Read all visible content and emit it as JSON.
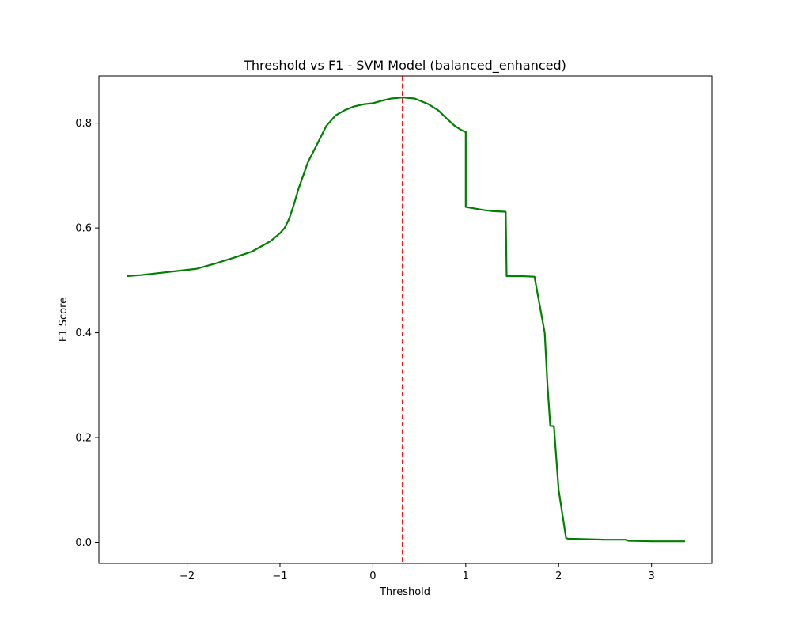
{
  "chart_data": {
    "type": "line",
    "title": "Threshold vs F1 - SVM Model (balanced_enhanced)",
    "xlabel": "Threshold",
    "ylabel": "F1 Score",
    "xlim": [
      -2.95,
      3.65
    ],
    "ylim": [
      -0.04,
      0.89
    ],
    "xticks": [
      -2,
      -1,
      0,
      1,
      2,
      3
    ],
    "xtick_labels": [
      "−2",
      "−1",
      "0",
      "1",
      "2",
      "3"
    ],
    "yticks": [
      0.0,
      0.2,
      0.4,
      0.6,
      0.8
    ],
    "ytick_labels": [
      "0.0",
      "0.2",
      "0.4",
      "0.6",
      "0.8"
    ],
    "grid": false,
    "series": [
      {
        "color": "#008000",
        "x": [
          -2.65,
          -2.5,
          -2.3,
          -2.1,
          -1.9,
          -1.7,
          -1.5,
          -1.3,
          -1.2,
          -1.1,
          -1.0,
          -0.95,
          -0.9,
          -0.85,
          -0.8,
          -0.75,
          -0.7,
          -0.6,
          -0.5,
          -0.4,
          -0.3,
          -0.2,
          -0.1,
          0.0,
          0.1,
          0.2,
          0.32,
          0.45,
          0.6,
          0.7,
          0.8,
          0.88,
          0.95,
          1.0,
          1.0,
          1.1,
          1.2,
          1.3,
          1.43,
          1.44,
          1.5,
          1.6,
          1.74,
          1.85,
          1.88,
          1.91,
          1.94,
          1.95,
          2.0,
          2.08,
          2.1,
          2.3,
          2.5,
          2.73,
          2.75,
          3.0,
          3.36
        ],
        "y": [
          0.508,
          0.51,
          0.514,
          0.518,
          0.522,
          0.532,
          0.543,
          0.555,
          0.565,
          0.575,
          0.59,
          0.6,
          0.618,
          0.645,
          0.675,
          0.7,
          0.725,
          0.76,
          0.795,
          0.815,
          0.825,
          0.832,
          0.836,
          0.838,
          0.843,
          0.847,
          0.849,
          0.847,
          0.836,
          0.825,
          0.808,
          0.795,
          0.787,
          0.783,
          0.64,
          0.637,
          0.634,
          0.632,
          0.631,
          0.508,
          0.508,
          0.508,
          0.507,
          0.4,
          0.3,
          0.222,
          0.222,
          0.22,
          0.1,
          0.008,
          0.007,
          0.006,
          0.005,
          0.005,
          0.003,
          0.002,
          0.002
        ]
      }
    ],
    "vline": {
      "x": 0.32,
      "color": "#ff0000",
      "style": "dashed"
    }
  }
}
